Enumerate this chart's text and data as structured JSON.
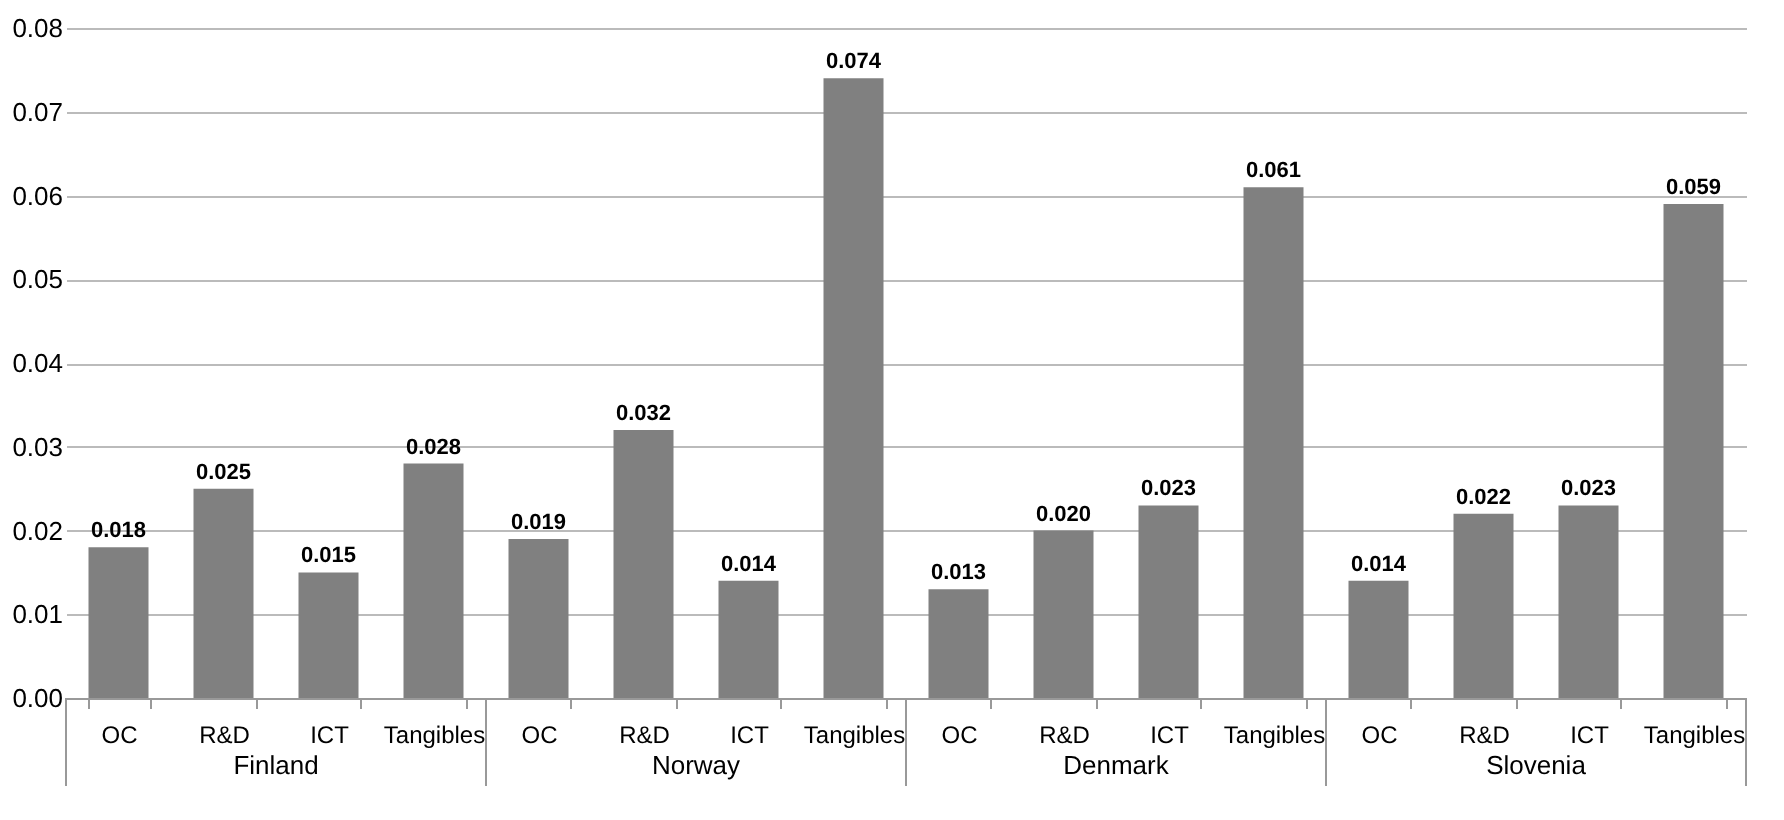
{
  "chart_data": {
    "type": "bar",
    "categories": [
      "OC",
      "R&D",
      "ICT",
      "Tangibles",
      "OC",
      "R&D",
      "ICT",
      "Tangibles",
      "OC",
      "R&D",
      "ICT",
      "Tangibles",
      "OC",
      "R&D",
      "ICT",
      "Tangibles"
    ],
    "values": [
      0.018,
      0.025,
      0.015,
      0.028,
      0.019,
      0.032,
      0.014,
      0.074,
      0.013,
      0.02,
      0.023,
      0.061,
      0.014,
      0.022,
      0.023,
      0.059
    ],
    "value_labels": [
      "0.018",
      "0.025",
      "0.015",
      "0.028",
      "0.019",
      "0.032",
      "0.014",
      "0.074",
      "0.013",
      "0.020",
      "0.023",
      "0.061",
      "0.014",
      "0.022",
      "0.023",
      "0.059"
    ],
    "color": "#808080",
    "annotations": [
      "Finland",
      "Norway",
      "Denmark",
      "Slovenia"
    ],
    "ylim": [
      0,
      0.08
    ],
    "yticks": [
      {
        "value": 0,
        "label": "0.00"
      },
      {
        "value": 0.01,
        "label": "0.01"
      },
      {
        "value": 0.02,
        "label": "0.02"
      },
      {
        "value": 0.03,
        "label": "0.03"
      },
      {
        "value": 0.04,
        "label": "0.04"
      },
      {
        "value": 0.05,
        "label": "0.05"
      },
      {
        "value": 0.06,
        "label": "0.06"
      },
      {
        "value": 0.07,
        "label": "0.07"
      },
      {
        "value": 0.08,
        "label": "0.08"
      }
    ],
    "grid": "y"
  }
}
